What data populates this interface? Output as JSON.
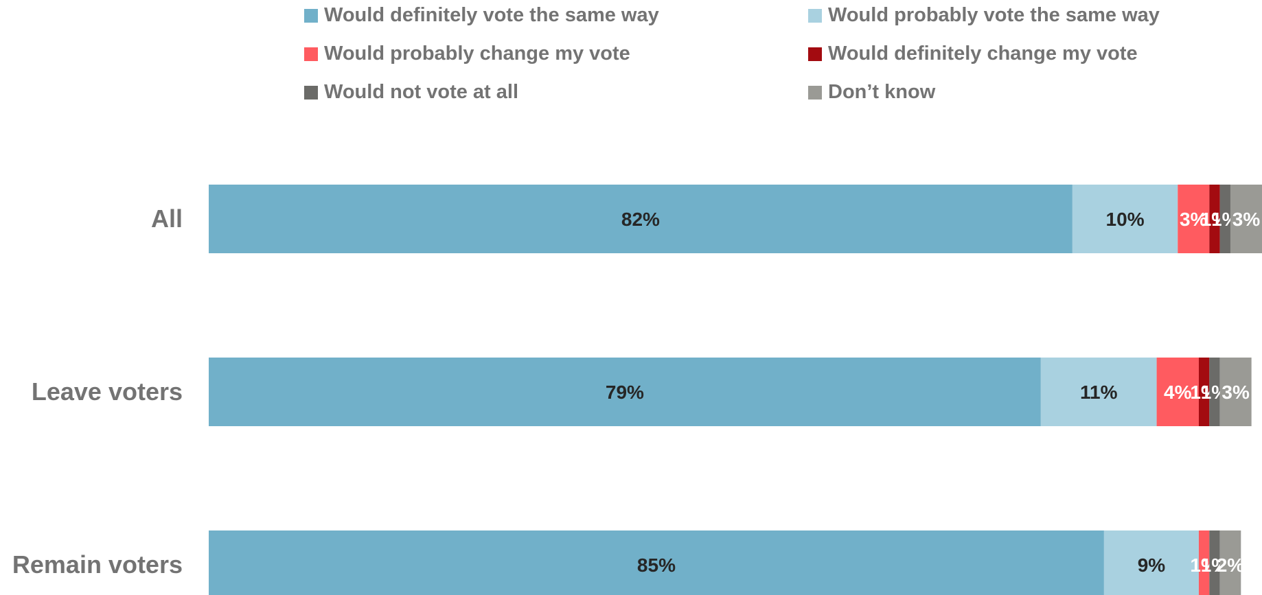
{
  "chart_data": {
    "type": "bar",
    "orientation": "horizontal",
    "stacked": true,
    "categories": [
      "All",
      "Leave voters",
      "Remain voters"
    ],
    "series": [
      {
        "name": "Would definitely vote the same way",
        "values": [
          82,
          79,
          85
        ],
        "labels": [
          "82%",
          "79%",
          "85%"
        ],
        "color": "#71b0c9",
        "label_color": "#262626"
      },
      {
        "name": "Would probably vote the same way",
        "values": [
          10,
          11,
          9
        ],
        "labels": [
          "10%",
          "11%",
          "9%"
        ],
        "color": "#a9d1e0",
        "label_color": "#262626"
      },
      {
        "name": "Would probably change my vote",
        "values": [
          3,
          4,
          1
        ],
        "labels": [
          "3%",
          "4%",
          "1%"
        ],
        "color": "#ff5b60",
        "label_color": "#ffffff"
      },
      {
        "name": "Would definitely change my vote",
        "values": [
          1,
          1,
          0
        ],
        "labels": [
          "1%",
          "1%",
          ""
        ],
        "color": "#a30b10",
        "label_color": "#ffffff"
      },
      {
        "name": "Would not vote at all",
        "values": [
          1,
          1,
          1
        ],
        "labels": [
          "1%",
          "1%",
          "1%"
        ],
        "color": "#6b6b68",
        "label_color": "#ffffff"
      },
      {
        "name": "Don’t know",
        "values": [
          3,
          3,
          2
        ],
        "labels": [
          "3%",
          "3%",
          "2%"
        ],
        "color": "#9a9a95",
        "label_color": "#ffffff"
      }
    ],
    "xlim": [
      0,
      100
    ],
    "grid": false,
    "legend_position": "top",
    "title": "",
    "xlabel": "",
    "ylabel": ""
  }
}
